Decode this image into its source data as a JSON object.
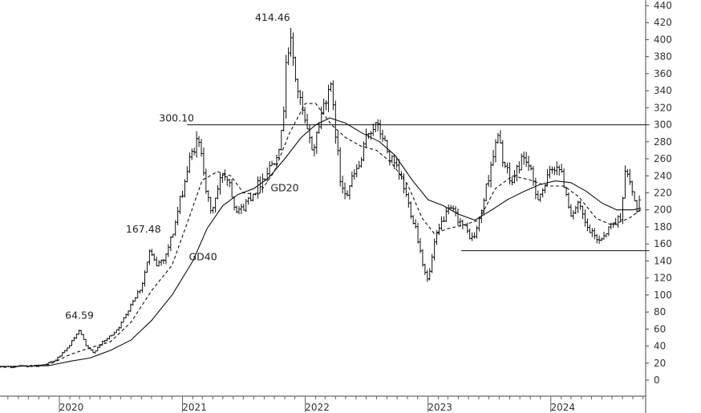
{
  "chart_data": {
    "type": "ohlc-bar",
    "title": "",
    "xlabel": "",
    "ylabel": "",
    "ylim": [
      -10,
      444
    ],
    "yticks": [
      0,
      20,
      40,
      60,
      80,
      100,
      120,
      140,
      160,
      180,
      200,
      220,
      240,
      260,
      280,
      300,
      320,
      340,
      360,
      380,
      400,
      420,
      440
    ],
    "x_year_labels": [
      "2020",
      "2021",
      "2022",
      "2023",
      "2024"
    ],
    "grid": false,
    "price_points": [
      [
        "2019-03-01",
        17
      ],
      [
        "2019-05-01",
        16
      ],
      [
        "2019-07-01",
        15
      ],
      [
        "2019-09-01",
        16
      ],
      [
        "2019-11-01",
        17
      ],
      [
        "2019-12-15",
        22
      ],
      [
        "2020-01-20",
        35
      ],
      [
        "2020-02-15",
        50
      ],
      [
        "2020-03-01",
        58
      ],
      [
        "2020-03-20",
        40
      ],
      [
        "2020-04-10",
        32
      ],
      [
        "2020-05-01",
        42
      ],
      [
        "2020-06-01",
        52
      ],
      [
        "2020-07-01",
        65
      ],
      [
        "2020-08-01",
        90
      ],
      [
        "2020-09-01",
        110
      ],
      [
        "2020-09-25",
        150
      ],
      [
        "2020-10-15",
        135
      ],
      [
        "2020-11-10",
        145
      ],
      [
        "2020-12-05",
        175
      ],
      [
        "2020-12-25",
        210
      ],
      [
        "2021-01-20",
        255
      ],
      [
        "2021-02-10",
        280
      ],
      [
        "2021-02-28",
        270
      ],
      [
        "2021-03-10",
        230
      ],
      [
        "2021-03-25",
        195
      ],
      [
        "2021-04-10",
        215
      ],
      [
        "2021-05-01",
        245
      ],
      [
        "2021-05-20",
        235
      ],
      [
        "2021-06-05",
        205
      ],
      [
        "2021-06-25",
        200
      ],
      [
        "2021-07-20",
        215
      ],
      [
        "2021-08-15",
        230
      ],
      [
        "2021-09-10",
        245
      ],
      [
        "2021-10-01",
        260
      ],
      [
        "2021-10-25",
        290
      ],
      [
        "2021-11-05",
        380
      ],
      [
        "2021-11-20",
        395
      ],
      [
        "2021-12-05",
        350
      ],
      [
        "2021-12-20",
        320
      ],
      [
        "2022-01-10",
        285
      ],
      [
        "2022-01-25",
        270
      ],
      [
        "2022-02-10",
        300
      ],
      [
        "2022-03-01",
        330
      ],
      [
        "2022-03-15",
        350
      ],
      [
        "2022-03-30",
        300
      ],
      [
        "2022-04-15",
        235
      ],
      [
        "2022-05-05",
        220
      ],
      [
        "2022-05-25",
        240
      ],
      [
        "2022-06-15",
        255
      ],
      [
        "2022-07-05",
        290
      ],
      [
        "2022-07-25",
        300
      ],
      [
        "2022-08-15",
        290
      ],
      [
        "2022-09-05",
        265
      ],
      [
        "2022-09-25",
        250
      ],
      [
        "2022-10-15",
        235
      ],
      [
        "2022-11-05",
        205
      ],
      [
        "2022-11-25",
        180
      ],
      [
        "2022-12-15",
        140
      ],
      [
        "2023-01-01",
        115
      ],
      [
        "2023-01-20",
        160
      ],
      [
        "2023-02-15",
        190
      ],
      [
        "2023-03-10",
        200
      ],
      [
        "2023-04-01",
        190
      ],
      [
        "2023-04-25",
        175
      ],
      [
        "2023-05-15",
        165
      ],
      [
        "2023-06-01",
        185
      ],
      [
        "2023-06-20",
        220
      ],
      [
        "2023-07-10",
        260
      ],
      [
        "2023-07-28",
        285
      ],
      [
        "2023-08-15",
        255
      ],
      [
        "2023-09-05",
        230
      ],
      [
        "2023-09-25",
        250
      ],
      [
        "2023-10-15",
        265
      ],
      [
        "2023-11-01",
        245
      ],
      [
        "2023-11-20",
        215
      ],
      [
        "2023-12-10",
        225
      ],
      [
        "2024-01-01",
        245
      ],
      [
        "2024-01-20",
        255
      ],
      [
        "2024-02-10",
        230
      ],
      [
        "2024-03-01",
        195
      ],
      [
        "2024-03-25",
        205
      ],
      [
        "2024-04-15",
        180
      ],
      [
        "2024-05-05",
        170
      ],
      [
        "2024-05-25",
        165
      ],
      [
        "2024-06-15",
        175
      ],
      [
        "2024-07-05",
        185
      ],
      [
        "2024-07-25",
        190
      ],
      [
        "2024-08-10",
        245
      ],
      [
        "2024-08-25",
        230
      ],
      [
        "2024-09-10",
        200
      ],
      [
        "2024-09-25",
        215
      ]
    ],
    "series": [
      {
        "name": "GD20",
        "style": "dashed",
        "points": [
          [
            "2019-03-01",
            17
          ],
          [
            "2019-08-01",
            16
          ],
          [
            "2019-12-01",
            18
          ],
          [
            "2020-02-01",
            30
          ],
          [
            "2020-04-01",
            38
          ],
          [
            "2020-06-01",
            45
          ],
          [
            "2020-08-01",
            68
          ],
          [
            "2020-10-01",
            105
          ],
          [
            "2020-12-01",
            135
          ],
          [
            "2021-01-20",
            190
          ],
          [
            "2021-03-01",
            235
          ],
          [
            "2021-04-15",
            245
          ],
          [
            "2021-05-25",
            240
          ],
          [
            "2021-07-01",
            220
          ],
          [
            "2021-08-15",
            218
          ],
          [
            "2021-10-01",
            245
          ],
          [
            "2021-11-15",
            290
          ],
          [
            "2022-01-01",
            325
          ],
          [
            "2022-02-01",
            325
          ],
          [
            "2022-03-20",
            300
          ],
          [
            "2022-05-01",
            285
          ],
          [
            "2022-06-15",
            275
          ],
          [
            "2022-08-01",
            270
          ],
          [
            "2022-09-15",
            255
          ],
          [
            "2022-11-01",
            230
          ],
          [
            "2022-12-15",
            190
          ],
          [
            "2023-01-20",
            172
          ],
          [
            "2023-03-01",
            178
          ],
          [
            "2023-04-15",
            182
          ],
          [
            "2023-06-01",
            188
          ],
          [
            "2023-07-20",
            225
          ],
          [
            "2023-09-10",
            240
          ],
          [
            "2023-11-01",
            235
          ],
          [
            "2023-12-20",
            228
          ],
          [
            "2024-02-10",
            228
          ],
          [
            "2024-03-25",
            215
          ],
          [
            "2024-05-15",
            190
          ],
          [
            "2024-07-01",
            182
          ],
          [
            "2024-08-20",
            190
          ],
          [
            "2024-09-25",
            200
          ]
        ]
      },
      {
        "name": "GD40",
        "style": "solid",
        "points": [
          [
            "2019-03-01",
            17
          ],
          [
            "2019-08-01",
            16
          ],
          [
            "2019-12-01",
            17
          ],
          [
            "2020-02-01",
            22
          ],
          [
            "2020-04-01",
            26
          ],
          [
            "2020-06-01",
            35
          ],
          [
            "2020-08-01",
            47
          ],
          [
            "2020-10-01",
            70
          ],
          [
            "2020-12-01",
            100
          ],
          [
            "2021-02-01",
            140
          ],
          [
            "2021-03-15",
            178
          ],
          [
            "2021-05-01",
            205
          ],
          [
            "2021-06-15",
            218
          ],
          [
            "2021-08-01",
            225
          ],
          [
            "2021-09-15",
            238
          ],
          [
            "2021-11-01",
            260
          ],
          [
            "2021-12-20",
            285
          ],
          [
            "2022-02-01",
            300
          ],
          [
            "2022-03-15",
            308
          ],
          [
            "2022-05-01",
            302
          ],
          [
            "2022-06-20",
            290
          ],
          [
            "2022-08-10",
            280
          ],
          [
            "2022-09-25",
            264
          ],
          [
            "2022-11-15",
            235
          ],
          [
            "2023-01-01",
            212
          ],
          [
            "2023-02-15",
            205
          ],
          [
            "2023-04-01",
            195
          ],
          [
            "2023-05-20",
            188
          ],
          [
            "2023-07-10",
            200
          ],
          [
            "2023-08-25",
            212
          ],
          [
            "2023-10-15",
            222
          ],
          [
            "2023-12-01",
            230
          ],
          [
            "2024-01-15",
            234
          ],
          [
            "2024-03-01",
            232
          ],
          [
            "2024-04-15",
            222
          ],
          [
            "2024-06-01",
            208
          ],
          [
            "2024-07-15",
            200
          ],
          [
            "2024-09-01",
            200
          ],
          [
            "2024-09-25",
            202
          ]
        ]
      }
    ],
    "horizontal_lines": [
      {
        "value": 300,
        "from": "2021-01-15",
        "to": "2024-10-20"
      },
      {
        "value": 152,
        "from": "2023-04-10",
        "to": "2024-10-20"
      }
    ],
    "annotations": [
      {
        "text": "64.59",
        "date": "2020-03-01",
        "value": 64.59
      },
      {
        "text": "167.48",
        "date": "2020-10-01",
        "value": 167.48
      },
      {
        "text": "300.10",
        "date": "2021-01-10",
        "value": 300.1
      },
      {
        "text": "414.46",
        "date": "2021-11-01",
        "value": 414.46
      }
    ],
    "line_labels": [
      {
        "text": "GD20",
        "series": "GD20"
      },
      {
        "text": "GD40",
        "series": "GD40"
      }
    ]
  }
}
